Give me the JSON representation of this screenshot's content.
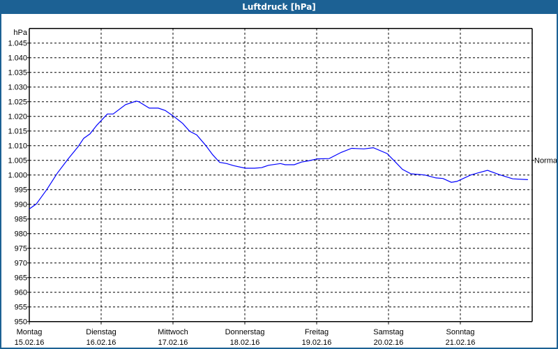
{
  "window": {
    "title": "Luftdruck [hPa]",
    "accent_color": "#1c6194"
  },
  "chart_data": {
    "type": "line",
    "title": "Luftdruck [hPa]",
    "ylabel": "hPa",
    "ylim": [
      950,
      1050
    ],
    "yticks": [
      950,
      955,
      960,
      965,
      970,
      975,
      980,
      985,
      990,
      995,
      1000,
      1005,
      1010,
      1015,
      1020,
      1025,
      1030,
      1035,
      1040,
      1045
    ],
    "ytick_labels": [
      "950",
      "955",
      "960",
      "965",
      "970",
      "975",
      "980",
      "985",
      "990",
      "995",
      "1.000",
      "1.005",
      "1.010",
      "1.015",
      "1.020",
      "1.025",
      "1.030",
      "1.035",
      "1.040",
      "1.045"
    ],
    "xlim": [
      "2016-02-15T00:00",
      "2016-02-22T00:00"
    ],
    "xticks": [
      {
        "day": "Montag",
        "date": "15.02.16"
      },
      {
        "day": "Dienstag",
        "date": "16.02.16"
      },
      {
        "day": "Mittwoch",
        "date": "17.02.16"
      },
      {
        "day": "Donnerstag",
        "date": "18.02.16"
      },
      {
        "day": "Freitag",
        "date": "19.02.16"
      },
      {
        "day": "Samstag",
        "date": "20.02.16"
      },
      {
        "day": "Sonntag",
        "date": "21.02.16"
      }
    ],
    "grid": true,
    "reference_line": {
      "label": "Normal",
      "value": 1005
    },
    "series": [
      {
        "color": "#0000ff",
        "points": [
          [
            "2016-02-15T00:00",
            988.4
          ],
          [
            "2016-02-15T02:20",
            990.1
          ],
          [
            "2016-02-15T05:50",
            995.0
          ],
          [
            "2016-02-15T09:20",
            1000.6
          ],
          [
            "2016-02-15T12:50",
            1005.3
          ],
          [
            "2016-02-15T16:20",
            1009.7
          ],
          [
            "2016-02-15T18:10",
            1012.5
          ],
          [
            "2016-02-15T20:15",
            1014.0
          ],
          [
            "2016-02-15T22:35",
            1017.0
          ],
          [
            "2016-02-16T02:05",
            1020.8
          ],
          [
            "2016-02-16T04:00",
            1020.8
          ],
          [
            "2016-02-16T08:10",
            1024.0
          ],
          [
            "2016-02-16T11:40",
            1025.2
          ],
          [
            "2016-02-16T12:35",
            1025.0
          ],
          [
            "2016-02-16T16:05",
            1022.8
          ],
          [
            "2016-02-16T19:05",
            1022.8
          ],
          [
            "2016-02-16T21:25",
            1022.0
          ],
          [
            "2016-02-17T00:15",
            1020.0
          ],
          [
            "2016-02-17T03:15",
            1017.6
          ],
          [
            "2016-02-17T05:35",
            1014.9
          ],
          [
            "2016-02-17T07:55",
            1013.7
          ],
          [
            "2016-02-17T10:55",
            1010.1
          ],
          [
            "2016-02-17T13:15",
            1006.9
          ],
          [
            "2016-02-17T15:35",
            1004.3
          ],
          [
            "2016-02-17T17:55",
            1003.9
          ],
          [
            "2016-02-17T20:15",
            1003.2
          ],
          [
            "2016-02-18T00:10",
            1002.3
          ],
          [
            "2016-02-18T03:15",
            1002.3
          ],
          [
            "2016-02-18T05:35",
            1002.5
          ],
          [
            "2016-02-18T07:55",
            1003.3
          ],
          [
            "2016-02-18T11:55",
            1003.9
          ],
          [
            "2016-02-18T13:30",
            1003.5
          ],
          [
            "2016-02-18T16:30",
            1003.5
          ],
          [
            "2016-02-18T18:55",
            1004.4
          ],
          [
            "2016-02-18T21:10",
            1004.8
          ],
          [
            "2016-02-19T00:15",
            1005.5
          ],
          [
            "2016-02-19T04:10",
            1005.6
          ],
          [
            "2016-02-19T08:10",
            1007.7
          ],
          [
            "2016-02-19T11:40",
            1009.1
          ],
          [
            "2016-02-19T15:50",
            1008.9
          ],
          [
            "2016-02-19T18:55",
            1009.3
          ],
          [
            "2016-02-19T23:30",
            1007.3
          ],
          [
            "2016-02-20T01:50",
            1004.9
          ],
          [
            "2016-02-20T04:40",
            1001.9
          ],
          [
            "2016-02-20T07:30",
            1000.4
          ],
          [
            "2016-02-20T12:05",
            1000.0
          ],
          [
            "2016-02-20T15:50",
            999.0
          ],
          [
            "2016-02-20T18:10",
            998.8
          ],
          [
            "2016-02-20T21:00",
            997.5
          ],
          [
            "2016-02-20T22:50",
            997.8
          ],
          [
            "2016-02-21T03:30",
            1000.0
          ],
          [
            "2016-02-21T05:50",
            1000.7
          ],
          [
            "2016-02-21T09:05",
            1001.6
          ],
          [
            "2016-02-21T12:50",
            1000.2
          ],
          [
            "2016-02-21T17:30",
            998.7
          ],
          [
            "2016-02-21T22:35",
            998.4
          ]
        ]
      }
    ]
  }
}
